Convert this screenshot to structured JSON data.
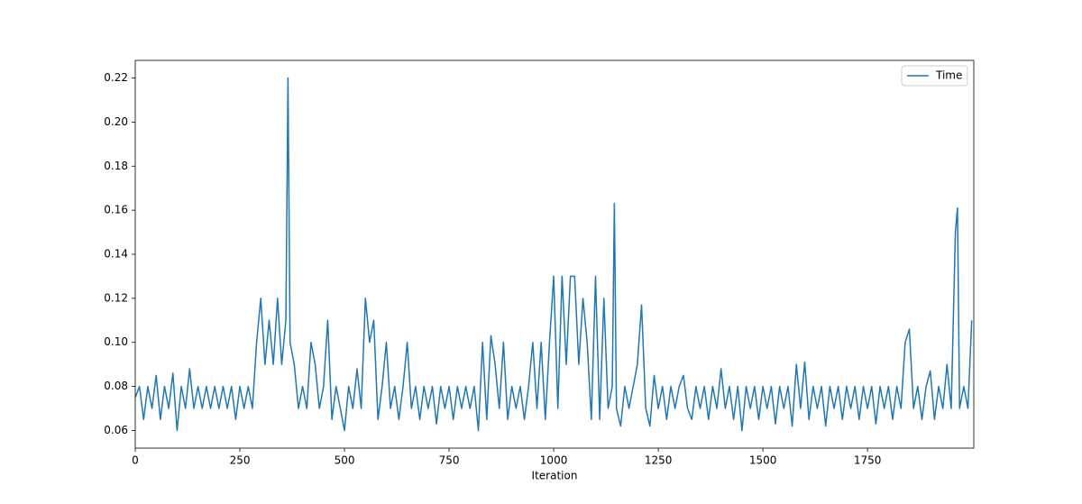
{
  "chart_data": {
    "type": "line",
    "xlabel": "Iteration",
    "x": [
      0,
      10,
      20,
      30,
      40,
      50,
      60,
      70,
      80,
      90,
      100,
      110,
      120,
      130,
      140,
      150,
      160,
      170,
      180,
      190,
      200,
      210,
      220,
      230,
      240,
      250,
      260,
      270,
      280,
      290,
      300,
      310,
      320,
      330,
      340,
      350,
      360,
      365,
      370,
      380,
      390,
      400,
      410,
      420,
      430,
      440,
      450,
      460,
      470,
      480,
      490,
      500,
      510,
      520,
      530,
      540,
      550,
      560,
      570,
      580,
      590,
      600,
      610,
      620,
      630,
      640,
      650,
      660,
      670,
      680,
      690,
      700,
      710,
      720,
      730,
      740,
      750,
      760,
      770,
      780,
      790,
      800,
      810,
      820,
      830,
      840,
      850,
      860,
      870,
      880,
      890,
      900,
      910,
      920,
      930,
      940,
      950,
      960,
      970,
      980,
      990,
      1000,
      1010,
      1020,
      1030,
      1040,
      1050,
      1060,
      1070,
      1080,
      1090,
      1100,
      1110,
      1120,
      1130,
      1140,
      1145,
      1150,
      1160,
      1170,
      1180,
      1190,
      1200,
      1210,
      1220,
      1230,
      1240,
      1250,
      1260,
      1270,
      1280,
      1290,
      1300,
      1310,
      1320,
      1330,
      1340,
      1350,
      1360,
      1370,
      1380,
      1390,
      1400,
      1410,
      1420,
      1430,
      1440,
      1450,
      1460,
      1470,
      1480,
      1490,
      1500,
      1510,
      1520,
      1530,
      1540,
      1550,
      1560,
      1570,
      1580,
      1590,
      1600,
      1610,
      1620,
      1630,
      1640,
      1650,
      1660,
      1670,
      1680,
      1690,
      1700,
      1710,
      1720,
      1730,
      1740,
      1750,
      1760,
      1770,
      1780,
      1790,
      1800,
      1810,
      1820,
      1830,
      1840,
      1850,
      1860,
      1870,
      1880,
      1890,
      1900,
      1910,
      1920,
      1930,
      1940,
      1950,
      1960,
      1965,
      1970,
      1980,
      1990,
      1999
    ],
    "series": [
      {
        "name": "Time",
        "color": "#1f77b4",
        "values": [
          0.075,
          0.08,
          0.065,
          0.08,
          0.07,
          0.085,
          0.065,
          0.08,
          0.07,
          0.086,
          0.06,
          0.08,
          0.07,
          0.088,
          0.07,
          0.08,
          0.07,
          0.08,
          0.07,
          0.08,
          0.07,
          0.08,
          0.07,
          0.08,
          0.065,
          0.08,
          0.07,
          0.08,
          0.07,
          0.1,
          0.12,
          0.09,
          0.11,
          0.09,
          0.12,
          0.09,
          0.11,
          0.22,
          0.1,
          0.09,
          0.07,
          0.08,
          0.07,
          0.1,
          0.09,
          0.07,
          0.08,
          0.11,
          0.065,
          0.08,
          0.07,
          0.06,
          0.08,
          0.07,
          0.088,
          0.07,
          0.12,
          0.1,
          0.11,
          0.065,
          0.08,
          0.1,
          0.07,
          0.08,
          0.065,
          0.08,
          0.1,
          0.07,
          0.08,
          0.065,
          0.08,
          0.07,
          0.08,
          0.063,
          0.08,
          0.07,
          0.08,
          0.065,
          0.08,
          0.07,
          0.08,
          0.07,
          0.08,
          0.06,
          0.1,
          0.065,
          0.103,
          0.09,
          0.07,
          0.1,
          0.065,
          0.08,
          0.07,
          0.08,
          0.065,
          0.08,
          0.1,
          0.07,
          0.1,
          0.065,
          0.1,
          0.13,
          0.07,
          0.13,
          0.09,
          0.13,
          0.13,
          0.09,
          0.12,
          0.1,
          0.065,
          0.13,
          0.065,
          0.12,
          0.07,
          0.08,
          0.163,
          0.07,
          0.062,
          0.08,
          0.07,
          0.08,
          0.09,
          0.117,
          0.07,
          0.062,
          0.085,
          0.07,
          0.08,
          0.065,
          0.08,
          0.07,
          0.08,
          0.085,
          0.07,
          0.065,
          0.08,
          0.07,
          0.08,
          0.065,
          0.08,
          0.07,
          0.088,
          0.07,
          0.08,
          0.065,
          0.08,
          0.06,
          0.08,
          0.07,
          0.08,
          0.065,
          0.08,
          0.07,
          0.08,
          0.063,
          0.08,
          0.07,
          0.08,
          0.062,
          0.09,
          0.07,
          0.091,
          0.065,
          0.08,
          0.07,
          0.08,
          0.062,
          0.08,
          0.07,
          0.08,
          0.065,
          0.08,
          0.07,
          0.08,
          0.065,
          0.08,
          0.07,
          0.08,
          0.063,
          0.08,
          0.07,
          0.08,
          0.065,
          0.08,
          0.07,
          0.1,
          0.106,
          0.07,
          0.08,
          0.065,
          0.08,
          0.087,
          0.065,
          0.08,
          0.07,
          0.09,
          0.07,
          0.15,
          0.161,
          0.07,
          0.08,
          0.07,
          0.11
        ]
      }
    ],
    "xlim": [
      0,
      2004
    ],
    "ylim": [
      0.052,
      0.228
    ],
    "xticks": [
      0,
      250,
      500,
      750,
      1000,
      1250,
      1500,
      1750
    ],
    "yticks": [
      {
        "value": 0.06,
        "label": "0.06"
      },
      {
        "value": 0.08,
        "label": "0.08"
      },
      {
        "value": 0.1,
        "label": "0.10"
      },
      {
        "value": 0.12,
        "label": "0.12"
      },
      {
        "value": 0.14,
        "label": "0.14"
      },
      {
        "value": 0.16,
        "label": "0.16"
      },
      {
        "value": 0.18,
        "label": "0.18"
      },
      {
        "value": 0.2,
        "label": "0.20"
      },
      {
        "value": 0.22,
        "label": "0.22"
      }
    ],
    "legend": "upper right"
  }
}
